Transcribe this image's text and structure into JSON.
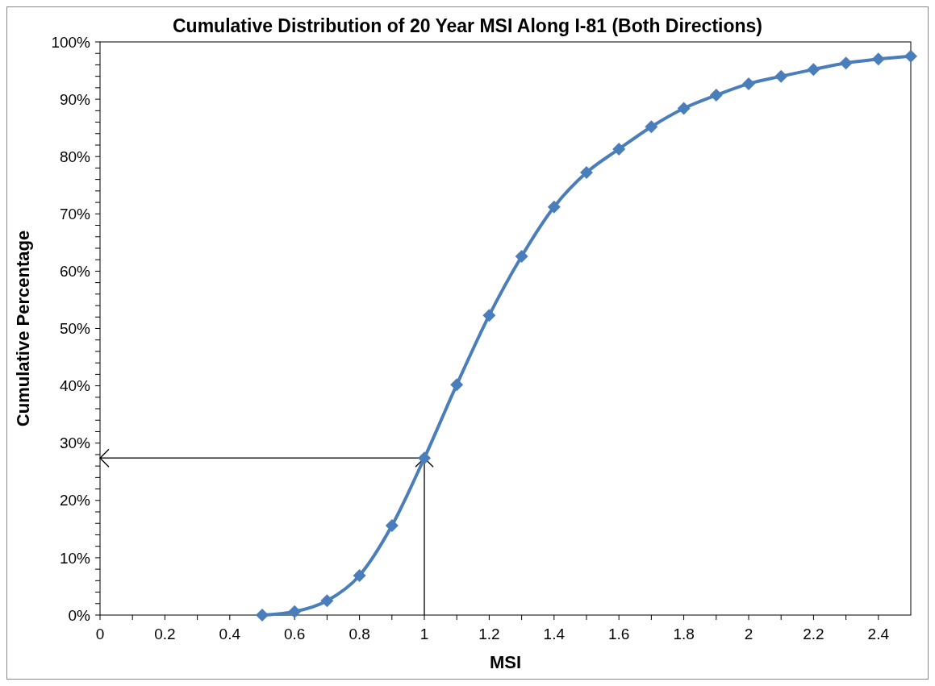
{
  "chart_data": {
    "type": "line",
    "title": "Cumulative Distribution of 20 Year MSI Along I-81 (Both Directions)",
    "xlabel": "MSI",
    "ylabel": "Cumulative Percentage",
    "x": [
      0.5,
      0.6,
      0.7,
      0.8,
      0.9,
      1.0,
      1.1,
      1.2,
      1.3,
      1.4,
      1.5,
      1.6,
      1.7,
      1.8,
      1.9,
      2.0,
      2.1,
      2.2,
      2.3,
      2.4,
      2.5
    ],
    "series": [
      {
        "color": "#4a7ebb",
        "values": [
          0,
          0.6,
          2.5,
          6.9,
          15.6,
          27.4,
          40.2,
          52.3,
          62.6,
          71.2,
          77.2,
          81.3,
          85.2,
          88.4,
          90.7,
          92.7,
          94.0,
          95.2,
          96.3,
          97.0,
          97.5
        ]
      }
    ],
    "xlim": [
      0,
      2.5
    ],
    "xticks": [
      0,
      {
        "value": 0.1,
        "label": null
      },
      0.2,
      {
        "value": 0.3,
        "label": null
      },
      0.4,
      {
        "value": 0.5,
        "label": null
      },
      0.6,
      {
        "value": 0.7,
        "label": null
      },
      0.8,
      {
        "value": 0.9,
        "label": null
      },
      1,
      {
        "value": 1.1,
        "label": null
      },
      1.2,
      {
        "value": 1.3,
        "label": null
      },
      1.4,
      {
        "value": 1.5,
        "label": null
      },
      1.6,
      {
        "value": 1.7,
        "label": null
      },
      1.8,
      {
        "value": 1.9,
        "label": null
      },
      2,
      {
        "value": 2.1,
        "label": null
      },
      2.2,
      {
        "value": 2.3,
        "label": null
      },
      2.4
    ],
    "ylim": [
      0,
      100
    ],
    "yticks": [
      {
        "value": 0,
        "label": "0%"
      },
      {
        "value": 2,
        "label": null
      },
      {
        "value": 4,
        "label": null
      },
      {
        "value": 6,
        "label": null
      },
      {
        "value": 8,
        "label": null
      },
      {
        "value": 10,
        "label": "10%"
      },
      {
        "value": 12,
        "label": null
      },
      {
        "value": 14,
        "label": null
      },
      {
        "value": 16,
        "label": null
      },
      {
        "value": 18,
        "label": null
      },
      {
        "value": 20,
        "label": "20%"
      },
      {
        "value": 22,
        "label": null
      },
      {
        "value": 24,
        "label": null
      },
      {
        "value": 26,
        "label": null
      },
      {
        "value": 28,
        "label": null
      },
      {
        "value": 30,
        "label": "30%"
      },
      {
        "value": 32,
        "label": null
      },
      {
        "value": 34,
        "label": null
      },
      {
        "value": 36,
        "label": null
      },
      {
        "value": 38,
        "label": null
      },
      {
        "value": 40,
        "label": "40%"
      },
      {
        "value": 42,
        "label": null
      },
      {
        "value": 44,
        "label": null
      },
      {
        "value": 46,
        "label": null
      },
      {
        "value": 48,
        "label": null
      },
      {
        "value": 50,
        "label": "50%"
      },
      {
        "value": 52,
        "label": null
      },
      {
        "value": 54,
        "label": null
      },
      {
        "value": 56,
        "label": null
      },
      {
        "value": 58,
        "label": null
      },
      {
        "value": 60,
        "label": "60%"
      },
      {
        "value": 62,
        "label": null
      },
      {
        "value": 64,
        "label": null
      },
      {
        "value": 66,
        "label": null
      },
      {
        "value": 68,
        "label": null
      },
      {
        "value": 70,
        "label": "70%"
      },
      {
        "value": 72,
        "label": null
      },
      {
        "value": 74,
        "label": null
      },
      {
        "value": 76,
        "label": null
      },
      {
        "value": 78,
        "label": null
      },
      {
        "value": 80,
        "label": "80%"
      },
      {
        "value": 82,
        "label": null
      },
      {
        "value": 84,
        "label": null
      },
      {
        "value": 86,
        "label": null
      },
      {
        "value": 88,
        "label": null
      },
      {
        "value": 90,
        "label": "90%"
      },
      {
        "value": 92,
        "label": null
      },
      {
        "value": 94,
        "label": null
      },
      {
        "value": 96,
        "label": null
      },
      {
        "value": 98,
        "label": null
      },
      {
        "value": 100,
        "label": "100%"
      }
    ],
    "ref_lines": [
      {
        "axis": "x",
        "value": 1,
        "color": "#000000"
      },
      {
        "axis": "y",
        "value": 27.4,
        "color": "#000000"
      }
    ],
    "marker": "diamond",
    "line_style": "solid",
    "grid": false
  }
}
